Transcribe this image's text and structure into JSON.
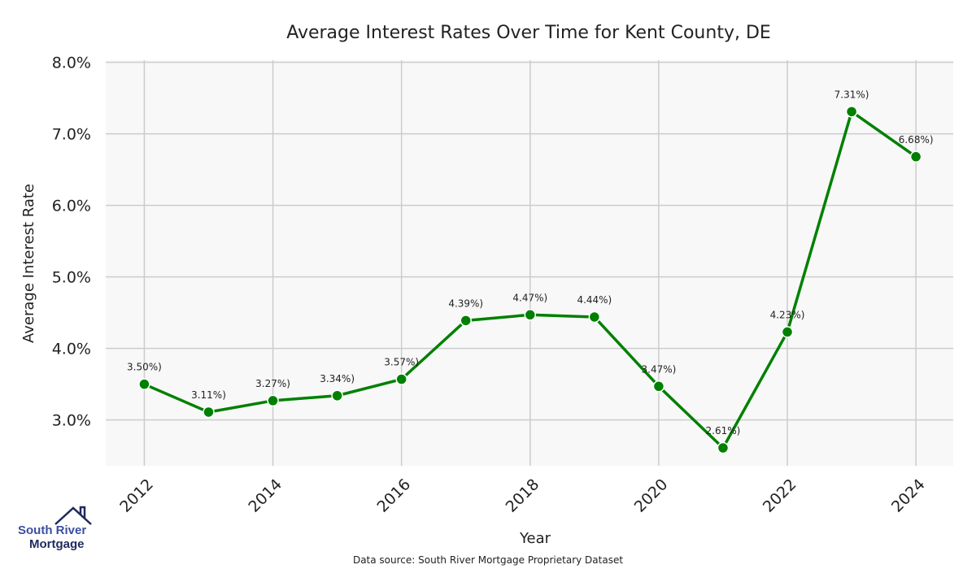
{
  "chart_data": {
    "type": "line",
    "title": "Average Interest Rates Over Time for Kent County, DE",
    "xlabel": "Year",
    "ylabel": "Average Interest Rate",
    "x": [
      2012,
      2013,
      2014,
      2015,
      2016,
      2017,
      2018,
      2019,
      2020,
      2021,
      2022,
      2023,
      2024
    ],
    "values": [
      3.5,
      3.11,
      3.27,
      3.34,
      3.57,
      4.39,
      4.47,
      4.44,
      3.47,
      2.61,
      4.23,
      7.31,
      6.68
    ],
    "data_labels": [
      "3.50%)",
      "3.11%)",
      "3.27%)",
      "3.34%)",
      "3.57%)",
      "4.39%)",
      "4.47%)",
      "4.44%)",
      "3.47%)",
      "2.61%)",
      "4.23%)",
      "7.31%)",
      "6.68%)"
    ],
    "xticks": [
      2012,
      2014,
      2016,
      2018,
      2020,
      2022,
      2024
    ],
    "xtick_labels": [
      "2012",
      "2014",
      "2016",
      "2018",
      "2020",
      "2022",
      "2024"
    ],
    "yticks": [
      3,
      4,
      5,
      6,
      7,
      8
    ],
    "ytick_labels": [
      "3.0%",
      "4.0%",
      "5.0%",
      "6.0%",
      "7.0%",
      "8.0%"
    ],
    "xlim": [
      2011.4,
      2024.58
    ],
    "ylim": [
      2.36,
      8.03
    ],
    "grid": true,
    "line_color": "#008000",
    "background_color": "#f8f8f8"
  },
  "source": "Data source: South River Mortgage Proprietary Dataset",
  "logo": {
    "line1": "South River",
    "line2": "Mortgage"
  }
}
